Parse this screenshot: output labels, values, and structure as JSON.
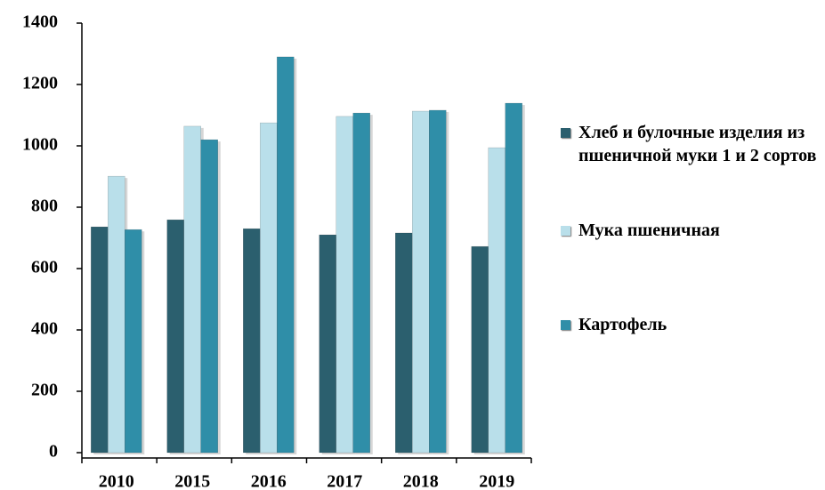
{
  "chart_data": {
    "type": "bar",
    "categories": [
      "2010",
      "2015",
      "2016",
      "2017",
      "2018",
      "2019"
    ],
    "series": [
      {
        "name": "Хлеб и булочные изделия из пшеничной муки 1 и 2 сортов",
        "color": "#2b5f6e",
        "values": [
          736,
          759,
          730,
          710,
          716,
          672
        ]
      },
      {
        "name": "Мука пшеничная",
        "color": "#b9dfea",
        "values": [
          901,
          1064,
          1075,
          1096,
          1113,
          994
        ]
      },
      {
        "name": "Картофель",
        "color": "#2f8ea8",
        "values": [
          727,
          1020,
          1290,
          1107,
          1116,
          1139
        ]
      }
    ],
    "ylim": [
      0,
      1400
    ],
    "yticks": [
      0,
      200,
      400,
      600,
      800,
      1000,
      1200,
      1400
    ],
    "grid": false,
    "legend": "right"
  }
}
